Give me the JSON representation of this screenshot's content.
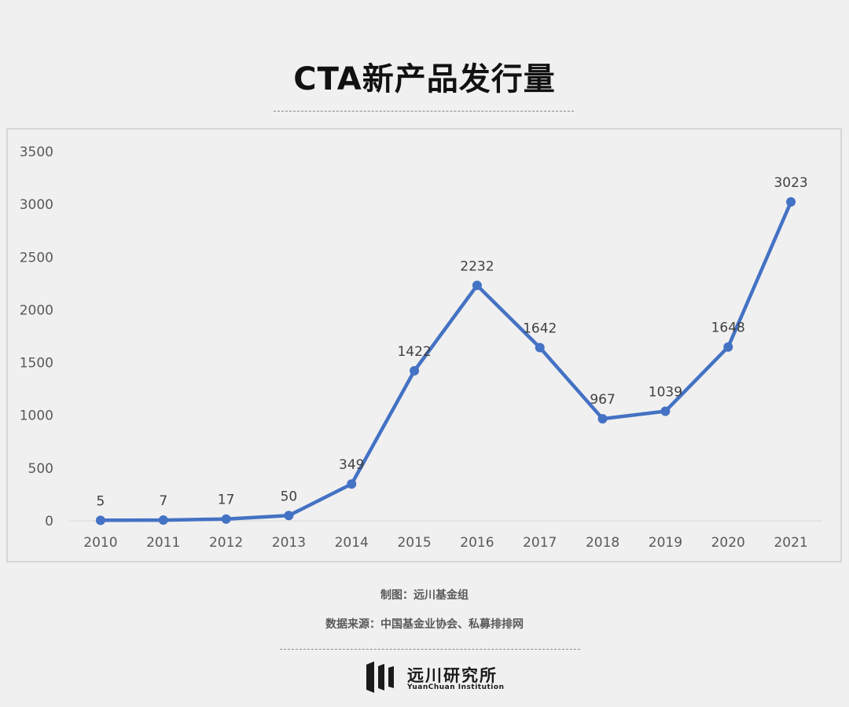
{
  "header": {
    "title": "CTA新产品发行量"
  },
  "chart_data": {
    "type": "line",
    "title": "CTA新产品发行量",
    "xlabel": "",
    "ylabel": "",
    "categories": [
      "2010",
      "2011",
      "2012",
      "2013",
      "2014",
      "2015",
      "2016",
      "2017",
      "2018",
      "2019",
      "2020",
      "2021"
    ],
    "series": [
      {
        "values": [
          5,
          7,
          17,
          50,
          349,
          1422,
          2232,
          1642,
          967,
          1039,
          1648,
          3023
        ],
        "color": "#4472c4"
      }
    ],
    "ylim": [
      0,
      3500
    ],
    "yticks": [
      0,
      500,
      1000,
      1500,
      2000,
      2500,
      3000,
      3500
    ],
    "grid": false,
    "legend": "none",
    "data_labels": true
  },
  "footer": {
    "maker": "制图：远川基金组",
    "source": "数据来源：中国基金业协会、私募排排网",
    "brand_cn": "远川研究所",
    "brand_en": "YuanChuan Institution"
  }
}
